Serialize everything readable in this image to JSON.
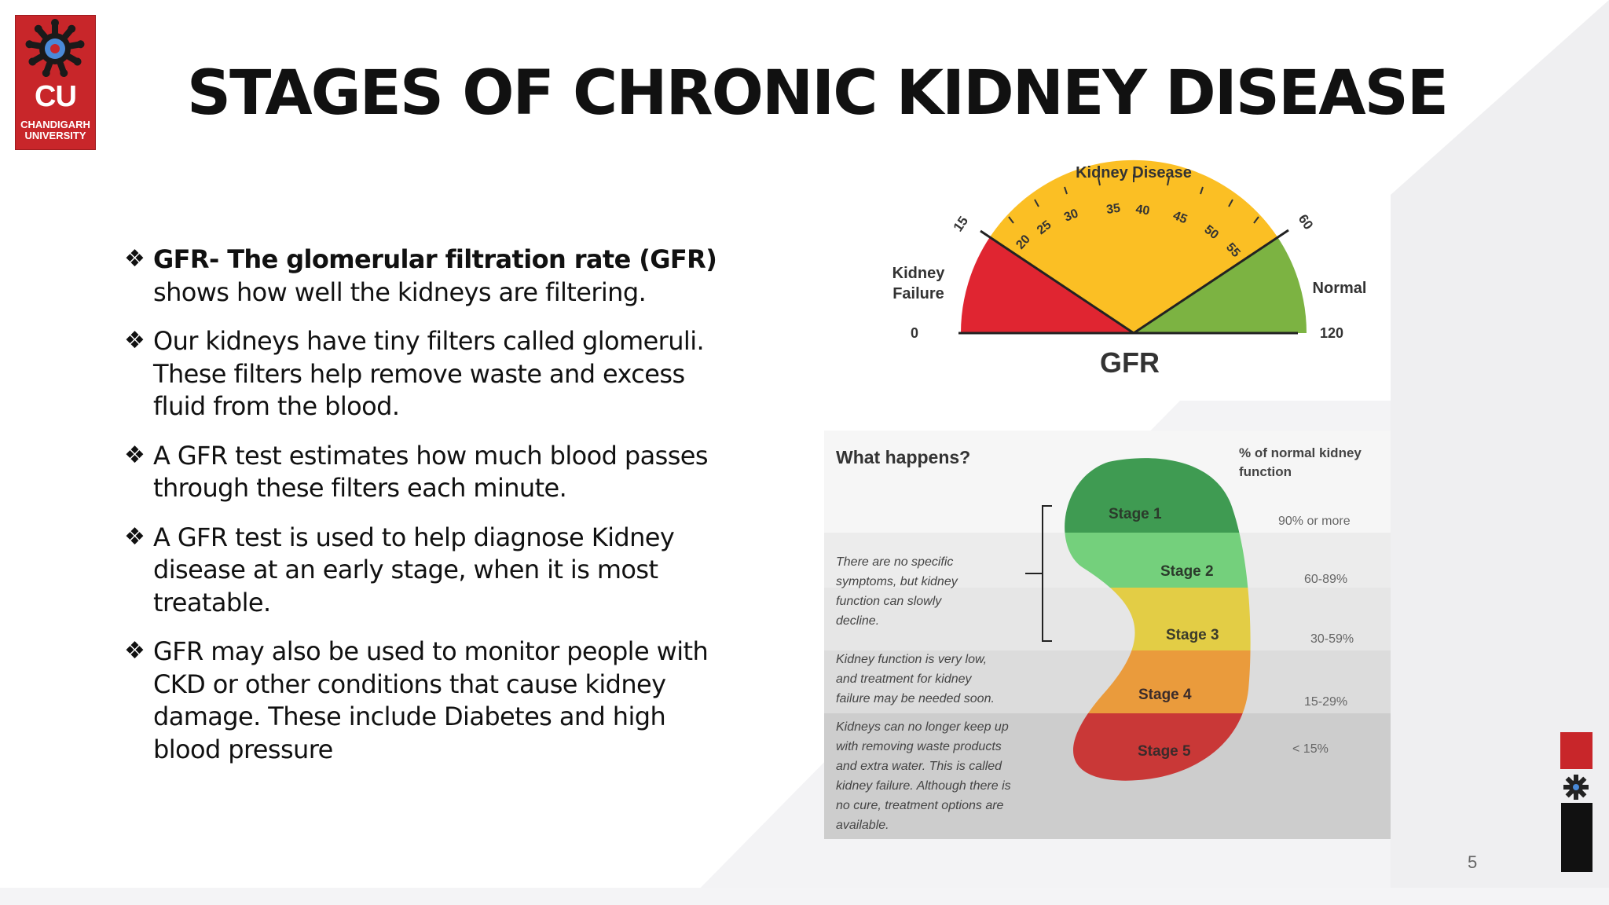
{
  "slide": {
    "title": "STAGES OF CHRONIC KIDNEY DISEASE",
    "page_number": "5"
  },
  "logo": {
    "abbr": "CU",
    "name_line1": "CHANDIGARH",
    "name_line2": "UNIVERSITY"
  },
  "bullets": [
    {
      "bold": "GFR- The glomerular filtration rate (GFR)",
      "lines": [
        "shows how well the kidneys are filtering."
      ]
    },
    {
      "lines": [
        "Our kidneys have tiny filters called glomeruli.",
        "These filters help remove waste and excess",
        "fluid from the blood."
      ]
    },
    {
      "lines": [
        " A GFR test estimates how much blood passes",
        "through these filters each minute."
      ]
    },
    {
      "lines": [
        "A GFR test is used to help diagnose Kidney",
        "disease at an early stage, when it is most",
        "treatable."
      ]
    },
    {
      "lines": [
        "GFR may also be used to monitor people with",
        "CKD  or other conditions that cause kidney",
        "damage. These include Diabetes and high",
        "blood pressure"
      ]
    }
  ],
  "gauge": {
    "title": "Kidney Disease",
    "axis_label": "GFR",
    "left_label": [
      "Kidney",
      "Failure"
    ],
    "right_label": "Normal",
    "min_label": "0",
    "max_label": "120",
    "boundary_labels": [
      "15",
      "60"
    ],
    "tick_labels": [
      "20",
      "25",
      "30",
      "35",
      "40",
      "45",
      "50",
      "55"
    ],
    "colors": {
      "failure": "#e02531",
      "disease": "#fbbf24",
      "normal": "#7cb342"
    }
  },
  "stages": {
    "heading": "What happens?",
    "percent_heading": [
      "% of normal kidney",
      "function"
    ],
    "items": [
      {
        "label": "Stage 1",
        "percent": "90% or more",
        "color": "#3f9b52"
      },
      {
        "label": "Stage 2",
        "percent": "60-89%",
        "color": "#74d07c"
      },
      {
        "label": "Stage 3",
        "percent": "30-59%",
        "color": "#e3cd45"
      },
      {
        "label": "Stage 4",
        "percent": "15-29%",
        "color": "#ea9b3c"
      },
      {
        "label": "Stage 5",
        "percent": "< 15%",
        "color": "#c93837"
      }
    ],
    "notes": [
      [
        "There are no specific",
        "symptoms, but kidney",
        "function can slowly",
        "decline."
      ],
      [
        "Kidney function is very low,",
        "and treatment for kidney",
        "failure may be needed soon."
      ],
      [
        "Kidneys can no longer keep up",
        "with removing waste products",
        "and extra water. This is called",
        "kidney failure. Although there is",
        "no cure, treatment options are",
        "available."
      ]
    ]
  }
}
